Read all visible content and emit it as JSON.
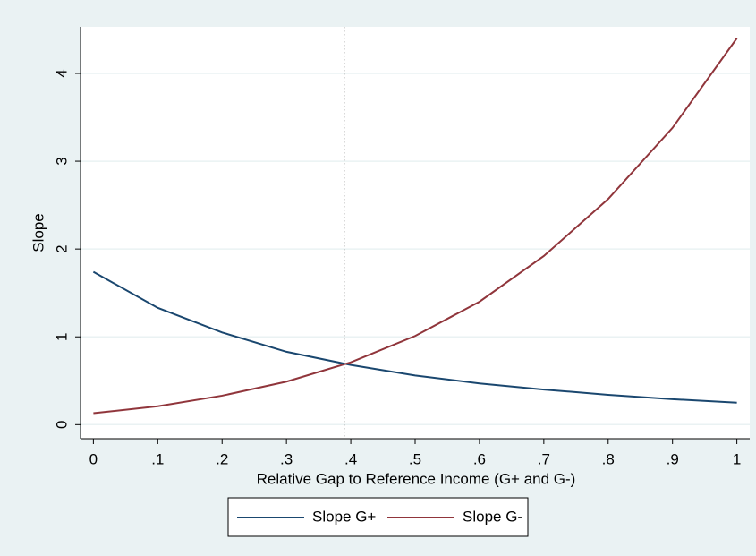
{
  "chart_data": {
    "type": "line",
    "x_label": "Relative Gap to Reference Income (G+ and G-)",
    "y_label": "Slope",
    "x": [
      0,
      0.1,
      0.2,
      0.3,
      0.4,
      0.5,
      0.6,
      0.7,
      0.8,
      0.9,
      1
    ],
    "series": [
      {
        "name": "Slope G+",
        "color": "#1a476f",
        "values": [
          1.74,
          1.33,
          1.05,
          0.83,
          0.68,
          0.56,
          0.47,
          0.4,
          0.34,
          0.29,
          0.25
        ]
      },
      {
        "name": "Slope G-",
        "color": "#90353b",
        "values": [
          0.13,
          0.21,
          0.33,
          0.49,
          0.71,
          1.01,
          1.4,
          1.92,
          2.57,
          3.38,
          4.4
        ]
      }
    ],
    "xlim": [
      -0.02,
      1.02
    ],
    "ylim": [
      -0.16,
      4.53
    ],
    "xticks": [
      0,
      {
        "value": 0.1,
        "label": ".1"
      },
      {
        "value": 0.2,
        "label": ".2"
      },
      {
        "value": 0.3,
        "label": ".3"
      },
      {
        "value": 0.4,
        "label": ".4"
      },
      {
        "value": 0.5,
        "label": ".5"
      },
      {
        "value": 0.6,
        "label": ".6"
      },
      {
        "value": 0.7,
        "label": ".7"
      },
      {
        "value": 0.8,
        "label": ".8"
      },
      {
        "value": 0.9,
        "label": ".9"
      },
      1
    ],
    "yticks": [
      0,
      1,
      2,
      3,
      4
    ],
    "xline": 0.39,
    "grid": true,
    "legend": "bottom"
  }
}
